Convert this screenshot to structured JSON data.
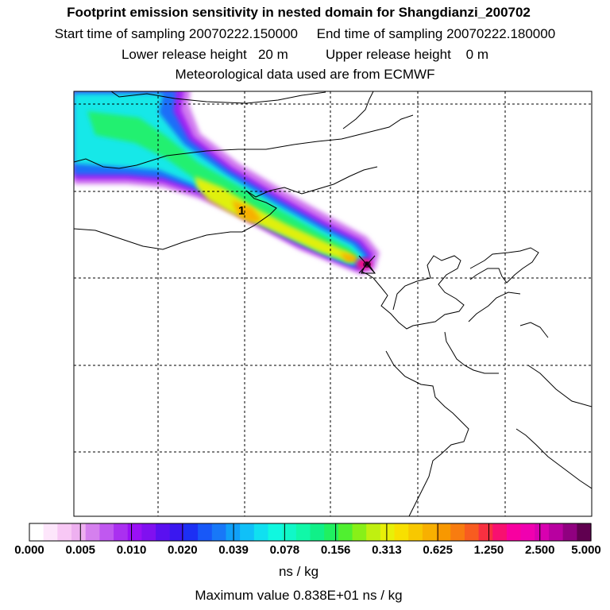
{
  "header": {
    "title": "Footprint emission sensitivity in nested domain for Shangdianzi_200702",
    "line2": "Start time of sampling 20070222.150000     End time of sampling 20070222.180000",
    "line3": "Lower release height   20 m          Upper release height    0 m",
    "line4": "Meteorological data used are from ECMWF"
  },
  "map": {
    "station_marker_label": "1",
    "colors": {
      "frame": "#000000",
      "grid": "#000000",
      "coastline": "#000000",
      "receptor": "#1a1a1a"
    }
  },
  "colorbar": {
    "tick_labels": [
      "0.000",
      "0.005",
      "0.010",
      "0.020",
      "0.039",
      "0.078",
      "0.156",
      "0.313",
      "0.625",
      "1.250",
      "2.500",
      "5.000"
    ],
    "colors": [
      "#ffffff",
      "#fde6fb",
      "#f8c8f5",
      "#eeb0f0",
      "#d580ee",
      "#c058f0",
      "#aa30f0",
      "#9a10f5",
      "#8010f0",
      "#5a10f0",
      "#3a18f0",
      "#1c30f4",
      "#1858f8",
      "#1878f8",
      "#10a0f8",
      "#10c0f8",
      "#10e0f0",
      "#10f8e0",
      "#10f8c8",
      "#10f8a8",
      "#10f088",
      "#20f060",
      "#50f030",
      "#88f018",
      "#c0f010",
      "#e8f008",
      "#f8e000",
      "#f8c800",
      "#f8b000",
      "#f89800",
      "#f87c10",
      "#f85c20",
      "#f83040",
      "#f81070",
      "#f800a0",
      "#f000b0",
      "#d800b0",
      "#b800a0",
      "#900080",
      "#600050"
    ],
    "unit": "ns / kg"
  },
  "footer": {
    "max_value": "Maximum value  0.838E+01 ns / kg"
  }
}
